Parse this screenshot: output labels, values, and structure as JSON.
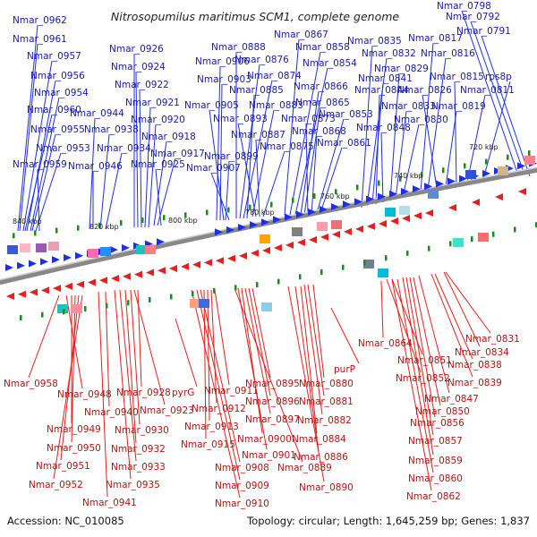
{
  "title": "Nitrosopumilus maritimus SCM1, complete genome",
  "footer": {
    "accession": "Accession: NC_010085",
    "summary": "Topology: circular; Length: 1,645,259 bp; Genes: 1,837"
  },
  "ticks": [
    "840 kbp",
    "820 kbp",
    "800 kbp",
    "780 kbp",
    "760 kbp",
    "740 kbp",
    "720 kbp"
  ],
  "colors": {
    "forward": "#1e2ee6",
    "reverse": "#e61e1e",
    "axis": "#888888",
    "tick_marks": "#1e8c1e"
  },
  "top_labels": [
    "Nmar_0798",
    "Nmar_0792",
    "Nmar_0791",
    "Nmar_0962",
    "Nmar_0961",
    "Nmar_0957",
    "Nmar_0956",
    "Nmar_0954",
    "Nmar_0960",
    "Nmar_0955",
    "Nmar_0953",
    "Nmar_0959",
    "Nmar_0944",
    "Nmar_0946",
    "Nmar_0938",
    "Nmar_0934",
    "Nmar_0926",
    "Nmar_0924",
    "Nmar_0922",
    "Nmar_0921",
    "Nmar_0920",
    "Nmar_0918",
    "Nmar_0917",
    "Nmar_0925",
    "Nmar_0906",
    "Nmar_0903",
    "Nmar_0905",
    "Nmar_0899",
    "Nmar_0907",
    "Nmar_0888",
    "Nmar_0876",
    "Nmar_0874",
    "Nmar_0885",
    "Nmar_0883",
    "Nmar_0893",
    "Nmar_0887",
    "Nmar_0875",
    "Nmar_0867",
    "Nmar_0858",
    "Nmar_0854",
    "Nmar_0866",
    "Nmar_0865",
    "Nmar_0873",
    "Nmar_0868",
    "Nmar_0853",
    "Nmar_0861",
    "Nmar_0835",
    "Nmar_0832",
    "Nmar_0841",
    "Nmar_0844",
    "Nmar_0848",
    "Nmar_0829",
    "Nmar_0833",
    "Nmar_0830",
    "Nmar_0817",
    "Nmar_0816",
    "Nmar_0826",
    "Nmar_0819",
    "Nmar_0815",
    "Nmar_0811",
    "rps8p"
  ],
  "bottom_labels": [
    "Nmar_0831",
    "Nmar_0864",
    "Nmar_0834",
    "Nmar_0851",
    "Nmar_0838",
    "Nmar_0852",
    "Nmar_0839",
    "Nmar_0847",
    "Nmar_0850",
    "Nmar_0856",
    "Nmar_0857",
    "Nmar_0859",
    "Nmar_0860",
    "Nmar_0862",
    "purP",
    "Nmar_0880",
    "Nmar_0881",
    "Nmar_0882",
    "Nmar_0884",
    "Nmar_0886",
    "Nmar_0890",
    "Nmar_0895",
    "Nmar_0896",
    "Nmar_0897",
    "Nmar_0900",
    "Nmar_0901",
    "Nmar_0889",
    "Nmar_0911",
    "Nmar_0912",
    "Nmar_0913",
    "Nmar_0915",
    "Nmar_0908",
    "Nmar_0909",
    "Nmar_0910",
    "pyrG",
    "Nmar_0928",
    "Nmar_0923",
    "Nmar_0930",
    "Nmar_0932",
    "Nmar_0933",
    "Nmar_0935",
    "Nmar_0940",
    "Nmar_0941",
    "Nmar_0948",
    "Nmar_0949",
    "Nmar_0950",
    "Nmar_0951",
    "Nmar_0952",
    "Nmar_0958"
  ]
}
